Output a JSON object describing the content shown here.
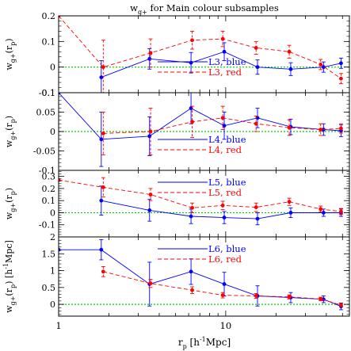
{
  "figure": {
    "title": "w",
    "title_sub": "g+",
    "title_rest": " for Main colour subsamples",
    "xlabel_main": "r",
    "xlabel_sub": "p",
    "xlabel_unit": " [h",
    "xlabel_sup": "-1",
    "xlabel_unit2": "Mpc]",
    "x_tick_labels": [
      "1",
      "10"
    ],
    "colors": {
      "blue": "#0000ff",
      "red": "#ff0000",
      "zero": "#00cc00"
    }
  },
  "chart_data": [
    {
      "type": "line",
      "panel": 1,
      "ylabel": "w_g+(r_p)",
      "xscale": "log",
      "xlim": [
        1,
        55
      ],
      "ylim": [
        -0.1,
        0.2
      ],
      "yticks": [
        -0.1,
        0,
        0.1,
        0.2
      ],
      "ytick_labels": [
        "-0.1",
        "0",
        "0.1",
        "0.2"
      ],
      "legend": {
        "placement": "bottom-right",
        "entries": [
          "L3, blue",
          "L3, red"
        ]
      },
      "series": [
        {
          "name": "L3, blue",
          "color": "blue",
          "style": "solid",
          "x": [
            1.8,
            3.5,
            6.2,
            9.8,
            15.5,
            24.5,
            38.5,
            49
          ],
          "y": [
            -0.04,
            0.032,
            0.017,
            0.06,
            0.0,
            -0.008,
            0.0,
            0.015
          ],
          "err": [
            0.065,
            0.04,
            0.04,
            0.035,
            0.028,
            0.025,
            0.02,
            0.02
          ]
        },
        {
          "name": "L3, red",
          "color": "red",
          "style": "dashed",
          "x": [
            1.0,
            1.85,
            3.55,
            6.3,
            9.6,
            15.2,
            24,
            37,
            49
          ],
          "y": [
            0.2,
            0.0,
            0.055,
            0.105,
            0.11,
            0.075,
            0.06,
            0.01,
            -0.045
          ],
          "err": [
            0,
            0.105,
            0.055,
            0.035,
            0.03,
            0.025,
            0.025,
            0.02,
            0.02
          ]
        }
      ]
    },
    {
      "type": "line",
      "panel": 2,
      "ylabel": "w_g+(r_p)",
      "xscale": "log",
      "xlim": [
        1,
        55
      ],
      "ylim": [
        -0.1,
        0.1
      ],
      "yticks": [
        -0.1,
        -0.05,
        0,
        0.05,
        0.1
      ],
      "ytick_labels": [
        "-0.1",
        "-0.05",
        "0",
        "0.05",
        "0.1"
      ],
      "legend": {
        "placement": "bottom-right",
        "entries": [
          "L4, blue",
          "L4, red"
        ]
      },
      "series": [
        {
          "name": "L4, blue",
          "color": "blue",
          "style": "solid",
          "x": [
            1.0,
            1.8,
            3.5,
            6.2,
            9.8,
            15.5,
            24.5,
            38.5,
            49
          ],
          "y": [
            0.1,
            -0.02,
            -0.012,
            0.06,
            0.015,
            0.035,
            0.012,
            0.005,
            0.002
          ],
          "err": [
            0,
            0.07,
            0.05,
            0.04,
            0.035,
            0.025,
            0.02,
            0.015,
            0.015
          ]
        },
        {
          "name": "L4, red",
          "color": "red",
          "style": "dashed",
          "x": [
            1.85,
            3.55,
            6.3,
            9.6,
            15.2,
            24,
            37,
            49
          ],
          "y": [
            -0.005,
            0.0,
            0.025,
            0.035,
            0.02,
            0.01,
            0.005,
            0.008
          ],
          "err": [
            0.055,
            0.06,
            0.04,
            0.03,
            0.02,
            0.02,
            0.015,
            0.012
          ]
        }
      ]
    },
    {
      "type": "line",
      "panel": 3,
      "ylabel": "w_g+(r_p)",
      "xscale": "log",
      "xlim": [
        1,
        55
      ],
      "ylim": [
        -0.2,
        0.35
      ],
      "yticks": [
        -0.1,
        0,
        0.1,
        0.2,
        0.3
      ],
      "ytick_labels": [
        "-0.1",
        "0",
        "0.1",
        "0.2",
        "0.3"
      ],
      "legend": {
        "placement": "top-right",
        "entries": [
          "L5, blue",
          "L5, red"
        ]
      },
      "series": [
        {
          "name": "L5, blue",
          "color": "blue",
          "style": "solid",
          "x": [
            1.8,
            3.5,
            6.2,
            9.8,
            15.5,
            24.5,
            38.5,
            49
          ],
          "y": [
            0.1,
            0.02,
            -0.03,
            -0.04,
            -0.05,
            0.0,
            0.0,
            0.0
          ],
          "err": [
            0.12,
            0.09,
            0.06,
            0.05,
            0.05,
            0.04,
            0.03,
            0.03
          ]
        },
        {
          "name": "L5, red",
          "color": "red",
          "style": "dashed",
          "x": [
            1.0,
            1.85,
            3.55,
            6.3,
            9.6,
            15.2,
            24,
            37,
            49
          ],
          "y": [
            0.27,
            0.21,
            0.15,
            0.04,
            0.06,
            0.045,
            0.09,
            0.03,
            0.01
          ],
          "err": [
            0,
            0.08,
            0.05,
            0.04,
            0.035,
            0.035,
            0.03,
            0.025,
            0.025
          ]
        }
      ]
    },
    {
      "type": "line",
      "panel": 4,
      "ylabel": "w_g+(r_p) [h^-1Mpc]",
      "xscale": "log",
      "xlim": [
        1,
        55
      ],
      "ylim": [
        -0.35,
        2.0
      ],
      "yticks": [
        0,
        0.5,
        1,
        1.5,
        2
      ],
      "ytick_labels": [
        "0",
        "0.5",
        "1",
        "1.5",
        "2"
      ],
      "legend": {
        "placement": "top-right",
        "entries": [
          "L6, blue",
          "L6, red"
        ]
      },
      "series": [
        {
          "name": "L6, blue",
          "color": "blue",
          "style": "solid",
          "x": [
            1.0,
            1.8,
            3.5,
            6.2,
            9.8,
            15.5,
            24.5,
            38.5,
            49
          ],
          "y": [
            1.62,
            1.62,
            0.6,
            0.97,
            0.6,
            0.25,
            0.2,
            0.15,
            -0.06
          ],
          "err": [
            0,
            0.3,
            0.65,
            0.38,
            0.35,
            0.3,
            0.15,
            0.1,
            0.1
          ]
        },
        {
          "name": "L6, red",
          "color": "red",
          "style": "dashed",
          "x": [
            1.85,
            3.55,
            6.3,
            9.6,
            15.2,
            24,
            37,
            49
          ],
          "y": [
            0.97,
            0.62,
            0.42,
            0.27,
            0.25,
            0.22,
            0.16,
            -0.02
          ],
          "err": [
            0.15,
            0.12,
            0.1,
            0.08,
            0.07,
            0.06,
            0.05,
            0.05
          ]
        }
      ]
    }
  ]
}
